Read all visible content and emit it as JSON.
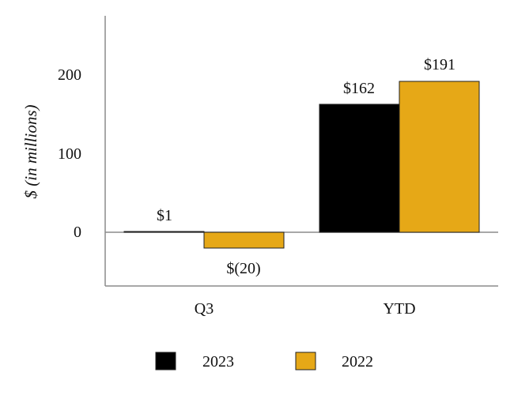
{
  "chart_data": {
    "type": "bar",
    "categories": [
      "Q3",
      "YTD"
    ],
    "series": [
      {
        "name": "2023",
        "values": [
          1,
          162
        ],
        "labels": [
          "$1",
          "$162"
        ],
        "color": "#000000"
      },
      {
        "name": "2022",
        "values": [
          -20,
          191
        ],
        "labels": [
          "$(20)",
          "$191"
        ],
        "color": "#E6A817"
      }
    ],
    "ylabel": "$ (in millions)",
    "xlabel": "",
    "ylim": [
      -68,
      275
    ],
    "yticks": [
      0,
      100,
      200
    ],
    "ytick_labels": [
      "0",
      "100",
      "200"
    ],
    "grid": false,
    "legend_position": "bottom"
  }
}
